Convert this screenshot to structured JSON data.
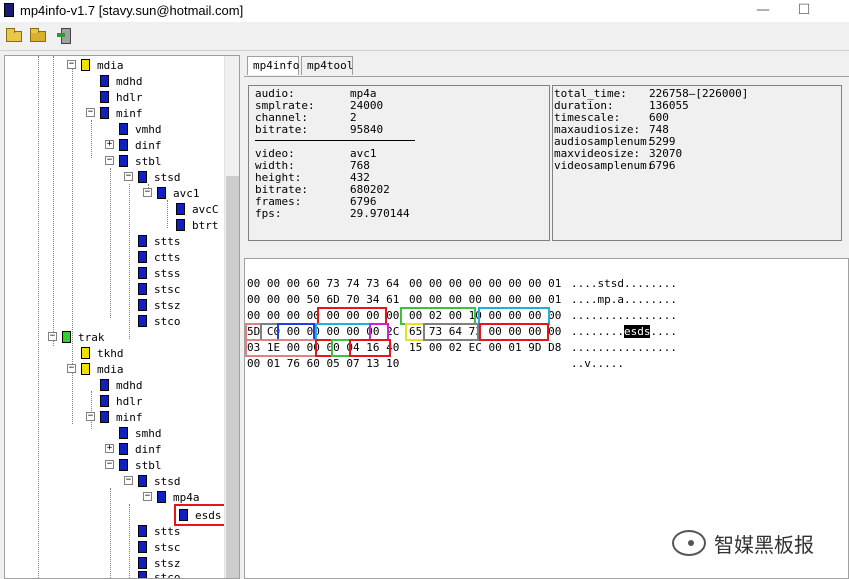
{
  "window": {
    "title": "mp4info-v1.7 [stavy.sun@hotmail.com]",
    "minimize": "—",
    "maximize": "☐"
  },
  "toolbar": {
    "buttons": [
      "open-file-icon",
      "open-folder-icon",
      "exit-icon"
    ]
  },
  "tree": {
    "nodes": [
      {
        "label": "mdia",
        "icon": "yellow"
      },
      {
        "label": "mdhd",
        "icon": "blue"
      },
      {
        "label": "hdlr",
        "icon": "blue"
      },
      {
        "label": "minf",
        "icon": "blue"
      },
      {
        "label": "vmhd",
        "icon": "blue"
      },
      {
        "label": "dinf",
        "icon": "blue"
      },
      {
        "label": "stbl",
        "icon": "blue"
      },
      {
        "label": "stsd",
        "icon": "blue"
      },
      {
        "label": "avc1",
        "icon": "blue"
      },
      {
        "label": "avcC",
        "icon": "blue"
      },
      {
        "label": "btrt",
        "icon": "blue"
      },
      {
        "label": "stts",
        "icon": "blue"
      },
      {
        "label": "ctts",
        "icon": "blue"
      },
      {
        "label": "stss",
        "icon": "blue"
      },
      {
        "label": "stsc",
        "icon": "blue"
      },
      {
        "label": "stsz",
        "icon": "blue"
      },
      {
        "label": "stco",
        "icon": "blue"
      },
      {
        "label": "trak",
        "icon": "green"
      },
      {
        "label": "tkhd",
        "icon": "yellow"
      },
      {
        "label": "mdia",
        "icon": "yellow"
      },
      {
        "label": "mdhd",
        "icon": "blue"
      },
      {
        "label": "hdlr",
        "icon": "blue"
      },
      {
        "label": "minf",
        "icon": "blue"
      },
      {
        "label": "smhd",
        "icon": "blue"
      },
      {
        "label": "dinf",
        "icon": "blue"
      },
      {
        "label": "stbl",
        "icon": "blue"
      },
      {
        "label": "stsd",
        "icon": "blue"
      },
      {
        "label": "mp4a",
        "icon": "blue"
      },
      {
        "label": "esds",
        "icon": "blue"
      },
      {
        "label": "stts",
        "icon": "blue"
      },
      {
        "label": "stsc",
        "icon": "blue"
      },
      {
        "label": "stsz",
        "icon": "blue"
      },
      {
        "label": "stco",
        "icon": "blue"
      }
    ]
  },
  "tabs": [
    {
      "label": "mp4info"
    },
    {
      "label": "mp4tool"
    }
  ],
  "info_left": [
    {
      "k": "audio:",
      "v": "mp4a"
    },
    {
      "k": "smplrate:",
      "v": "24000"
    },
    {
      "k": "channel:",
      "v": "2"
    },
    {
      "k": "bitrate:",
      "v": "95840"
    },
    {
      "k": "video:",
      "v": "avc1"
    },
    {
      "k": "width:",
      "v": "768"
    },
    {
      "k": "height:",
      "v": "432"
    },
    {
      "k": "bitrate:",
      "v": "680202"
    },
    {
      "k": "frames:",
      "v": "6796"
    },
    {
      "k": "fps:",
      "v": "29.970144"
    }
  ],
  "info_right": [
    {
      "k": "total_time:",
      "v": "226758—[226000]"
    },
    {
      "k": "duration:",
      "v": "136055"
    },
    {
      "k": "timescale:",
      "v": "600"
    },
    {
      "k": "maxaudiosize:",
      "v": "748"
    },
    {
      "k": "audiosamplenum:",
      "v": "5299"
    },
    {
      "k": "maxvideosize:",
      "v": "32070"
    },
    {
      "k": "videosamplenum:",
      "v": "6796"
    }
  ],
  "hex": {
    "rows": [
      {
        "a": "00 00 00 60 73 74 73 64",
        "b": "00 00 00 00 00 00 00 01",
        "c": "....stsd........"
      },
      {
        "a": "00 00 00 50 6D 70 34 61",
        "b": "00 00 00 00 00 00 00 01",
        "c": "....mp.a........"
      },
      {
        "a": "00 00 00 00 00 00 00 00",
        "b": "00 02 00 10 00 00 00 00",
        "c": "................"
      },
      {
        "a": "5D C0 00 00 00 00 00 2C",
        "b": "65 73 64 73 00 00 00 00",
        "c_pre": "........",
        "c_sel": "esds",
        "c_post": "...."
      },
      {
        "a": "03 1E 00 00 00 04 16 40",
        "b": "15 00 02 EC 00 01 9D D8",
        "c": "................"
      },
      {
        "a": "00 01 76 60 05 07 13 10",
        "b": "",
        "c": "..v....."
      }
    ]
  },
  "watermark": {
    "text": "智媒黑板报"
  }
}
